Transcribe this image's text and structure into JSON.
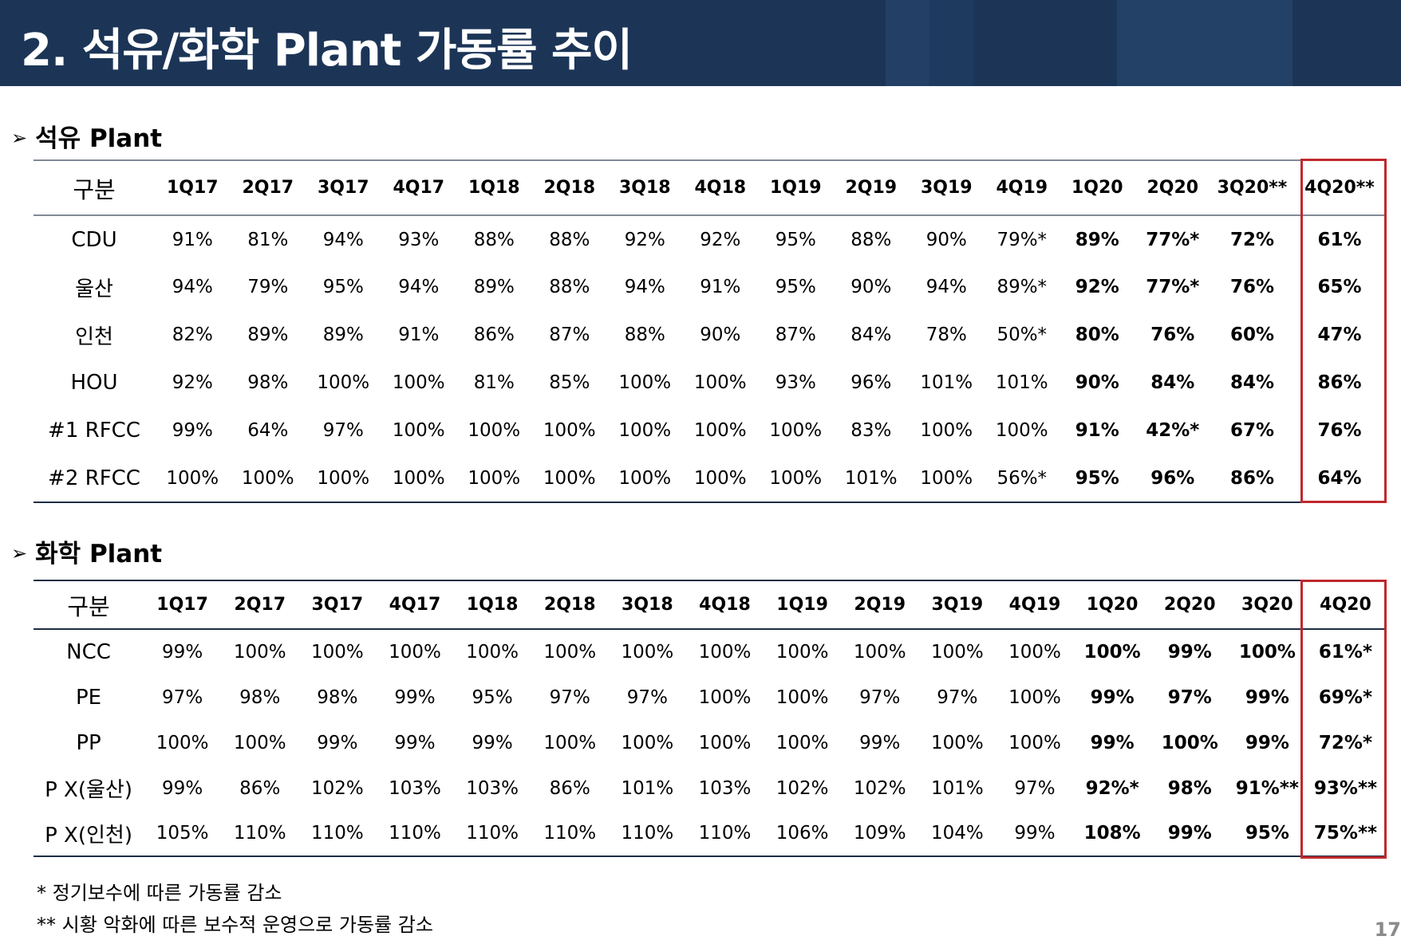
{
  "header": {
    "title": "2. 석유/화학 Plant 가동률 추이",
    "colors": {
      "background": "#1c3557",
      "accent_bands": [
        "#233f66",
        "#2a4a73",
        "#1f3a5f"
      ]
    }
  },
  "oil_section": {
    "arrow": "➢",
    "title": "석유 Plant",
    "header_label": "구분",
    "columns": [
      "1Q17",
      "2Q17",
      "3Q17",
      "4Q17",
      "1Q18",
      "2Q18",
      "3Q18",
      "4Q18",
      "1Q19",
      "2Q19",
      "3Q19",
      "4Q19",
      "1Q20",
      "2Q20",
      "3Q20**",
      "4Q20**"
    ],
    "rows": [
      {
        "label": "CDU",
        "values": [
          "91%",
          "81%",
          "94%",
          "93%",
          "88%",
          "88%",
          "92%",
          "92%",
          "95%",
          "88%",
          "90%",
          "79%*",
          "89%",
          "77%*",
          "72%",
          "61%"
        ]
      },
      {
        "label": "울산",
        "values": [
          "94%",
          "79%",
          "95%",
          "94%",
          "89%",
          "88%",
          "94%",
          "91%",
          "95%",
          "90%",
          "94%",
          "89%*",
          "92%",
          "77%*",
          "76%",
          "65%"
        ]
      },
      {
        "label": "인천",
        "values": [
          "82%",
          "89%",
          "89%",
          "91%",
          "86%",
          "87%",
          "88%",
          "90%",
          "87%",
          "84%",
          "78%",
          "50%*",
          "80%",
          "76%",
          "60%",
          "47%"
        ]
      },
      {
        "label": "HOU",
        "values": [
          "92%",
          "98%",
          "100%",
          "100%",
          "81%",
          "85%",
          "100%",
          "100%",
          "93%",
          "96%",
          "101%",
          "101%",
          "90%",
          "84%",
          "84%",
          "86%"
        ]
      },
      {
        "label": "#1 RFCC",
        "values": [
          "99%",
          "64%",
          "97%",
          "100%",
          "100%",
          "100%",
          "100%",
          "100%",
          "100%",
          "83%",
          "100%",
          "100%",
          "91%",
          "42%*",
          "67%",
          "76%"
        ]
      },
      {
        "label": "#2 RFCC",
        "values": [
          "100%",
          "100%",
          "100%",
          "100%",
          "100%",
          "100%",
          "100%",
          "100%",
          "100%",
          "101%",
          "100%",
          "56%*",
          "95%",
          "96%",
          "86%",
          "64%"
        ]
      }
    ]
  },
  "chem_section": {
    "arrow": "➢",
    "title": "화학 Plant",
    "header_label": "구분",
    "columns": [
      "1Q17",
      "2Q17",
      "3Q17",
      "4Q17",
      "1Q18",
      "2Q18",
      "3Q18",
      "4Q18",
      "1Q19",
      "2Q19",
      "3Q19",
      "4Q19",
      "1Q20",
      "2Q20",
      "3Q20",
      "4Q20"
    ],
    "rows": [
      {
        "label": "NCC",
        "values": [
          "99%",
          "100%",
          "100%",
          "100%",
          "100%",
          "100%",
          "100%",
          "100%",
          "100%",
          "100%",
          "100%",
          "100%",
          "100%",
          "99%",
          "100%",
          "61%*"
        ]
      },
      {
        "label": "PE",
        "values": [
          "97%",
          "98%",
          "98%",
          "99%",
          "95%",
          "97%",
          "97%",
          "100%",
          "100%",
          "97%",
          "97%",
          "100%",
          "99%",
          "97%",
          "99%",
          "69%*"
        ]
      },
      {
        "label": "PP",
        "values": [
          "100%",
          "100%",
          "99%",
          "99%",
          "99%",
          "100%",
          "100%",
          "100%",
          "100%",
          "99%",
          "100%",
          "100%",
          "99%",
          "100%",
          "99%",
          "72%*"
        ]
      },
      {
        "label": "P X(울산)",
        "values": [
          "99%",
          "86%",
          "102%",
          "103%",
          "103%",
          "86%",
          "101%",
          "103%",
          "102%",
          "102%",
          "101%",
          "97%",
          "92%*",
          "98%",
          "91%**",
          "93%**"
        ]
      },
      {
        "label": "P X(인천)",
        "values": [
          "105%",
          "110%",
          "110%",
          "110%",
          "110%",
          "110%",
          "110%",
          "110%",
          "106%",
          "109%",
          "104%",
          "99%",
          "108%",
          "99%",
          "95%",
          "75%**"
        ]
      }
    ]
  },
  "highlight_color": "#c0282d",
  "footnotes": [
    "* 정기보수에 따른 가동률 감소",
    "** 시황 악화에 따른 보수적 운영으로 가동률 감소"
  ],
  "page_number": "17"
}
